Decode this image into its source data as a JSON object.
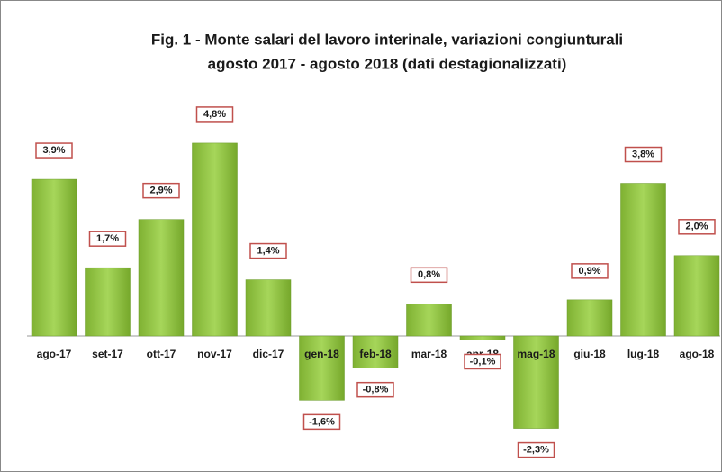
{
  "chart_data": {
    "type": "bar",
    "title": [
      "Fig. 1 - Monte  salari del lavoro interinale, variazioni congiunturali",
      "agosto 2017 - agosto 2018 (dati destagionalizzati)"
    ],
    "categories": [
      "ago-17",
      "set-17",
      "ott-17",
      "nov-17",
      "dic-17",
      "gen-18",
      "feb-18",
      "mar-18",
      "apr-18",
      "mag-18",
      "giu-18",
      "lug-18",
      "ago-18"
    ],
    "values": [
      3.9,
      1.7,
      2.9,
      4.8,
      1.4,
      -1.6,
      -0.8,
      0.8,
      -0.1,
      -2.3,
      0.9,
      3.8,
      2.0
    ],
    "value_labels": [
      "3,9%",
      "1,7%",
      "2,9%",
      "4,8%",
      "1,4%",
      "-1,6%",
      "-0,8%",
      "0,8%",
      "-0,1%",
      "-2,3%",
      "0,9%",
      "3,8%",
      "2,0%"
    ],
    "color": "#8cc63f"
  }
}
